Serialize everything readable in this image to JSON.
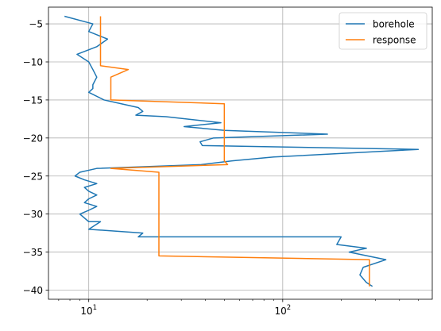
{
  "chart_data": {
    "type": "line",
    "title": "",
    "xlabel": "",
    "ylabel": "",
    "xscale": "log",
    "xlim": [
      6.2,
      590
    ],
    "ylim": [
      -41.2,
      -2.8
    ],
    "grid": true,
    "legend_position": "top-right",
    "x_ticks": [
      {
        "value": 10,
        "base": "10",
        "exp": "1"
      },
      {
        "value": 100,
        "base": "10",
        "exp": "2"
      }
    ],
    "y_ticks": [
      {
        "value": -5,
        "label": "−5"
      },
      {
        "value": -10,
        "label": "−10"
      },
      {
        "value": -15,
        "label": "−15"
      },
      {
        "value": -20,
        "label": "−20"
      },
      {
        "value": -25,
        "label": "−25"
      },
      {
        "value": -30,
        "label": "−30"
      },
      {
        "value": -35,
        "label": "−35"
      },
      {
        "value": -40,
        "label": "−40"
      }
    ],
    "series": [
      {
        "name": "borehole",
        "color": "#1f77b4",
        "points": [
          [
            7.5,
            -4
          ],
          [
            10.5,
            -5
          ],
          [
            10,
            -6
          ],
          [
            12.5,
            -7
          ],
          [
            11,
            -8
          ],
          [
            8.7,
            -9
          ],
          [
            10,
            -10
          ],
          [
            10.5,
            -11
          ],
          [
            11,
            -12
          ],
          [
            10.5,
            -13
          ],
          [
            10.5,
            -13.5
          ],
          [
            10,
            -14
          ],
          [
            12,
            -15
          ],
          [
            18,
            -16
          ],
          [
            19,
            -16.5
          ],
          [
            17.5,
            -17
          ],
          [
            25,
            -17.2
          ],
          [
            48,
            -18
          ],
          [
            31,
            -18.5
          ],
          [
            50,
            -19
          ],
          [
            170,
            -19.5
          ],
          [
            44,
            -20
          ],
          [
            37.5,
            -20.5
          ],
          [
            38.5,
            -21
          ],
          [
            500,
            -21.5
          ],
          [
            90,
            -22.5
          ],
          [
            55,
            -23
          ],
          [
            38,
            -23.5
          ],
          [
            11,
            -24
          ],
          [
            9,
            -24.5
          ],
          [
            8.5,
            -25
          ],
          [
            9.5,
            -25.5
          ],
          [
            11,
            -26
          ],
          [
            9.5,
            -26.5
          ],
          [
            10,
            -27
          ],
          [
            11,
            -27.5
          ],
          [
            10,
            -28
          ],
          [
            9.5,
            -28.5
          ],
          [
            11,
            -29
          ],
          [
            10,
            -29.5
          ],
          [
            9,
            -30
          ],
          [
            10,
            -31
          ],
          [
            11.5,
            -31
          ],
          [
            10,
            -32
          ],
          [
            19,
            -32.5
          ],
          [
            18,
            -33
          ],
          [
            200,
            -33
          ],
          [
            190,
            -34
          ],
          [
            270,
            -34.5
          ],
          [
            220,
            -35
          ],
          [
            340,
            -36
          ],
          [
            260,
            -37
          ],
          [
            250,
            -38
          ],
          [
            270,
            -39
          ],
          [
            290,
            -39.5
          ]
        ]
      },
      {
        "name": "response",
        "color": "#ff7f0e",
        "points": [
          [
            11.5,
            -4
          ],
          [
            11.5,
            -8.5
          ],
          [
            11.5,
            -10.5
          ],
          [
            16,
            -11
          ],
          [
            13,
            -12
          ],
          [
            13,
            -15
          ],
          [
            50,
            -15.5
          ],
          [
            50,
            -23
          ],
          [
            52,
            -23.5
          ],
          [
            13,
            -24
          ],
          [
            23,
            -24.5
          ],
          [
            23,
            -35.5
          ],
          [
            280,
            -36
          ],
          [
            280,
            -39.5
          ]
        ]
      }
    ]
  }
}
